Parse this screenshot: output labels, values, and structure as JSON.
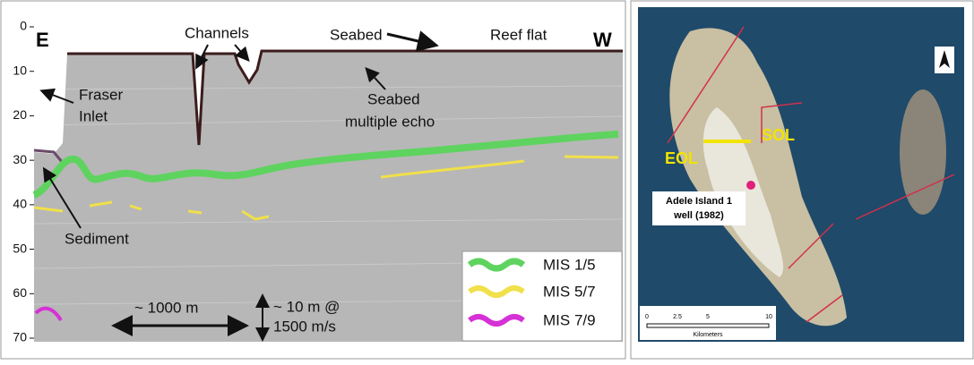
{
  "profile": {
    "depth_ticks": [
      0,
      10,
      20,
      30,
      40,
      50,
      60,
      70
    ],
    "east": "E",
    "west": "W",
    "channels": "Channels",
    "seabed": "Seabed",
    "reef_flat": "Reef flat",
    "fraser_inlet": [
      "Fraser",
      "Inlet"
    ],
    "multiple_echo": [
      "Seabed",
      "multiple echo"
    ],
    "sediment": "Sediment",
    "horizontal_scale": "~ 1000 m",
    "vertical_scale": [
      "~ 10 m @",
      "1500 m/s"
    ],
    "legend": [
      "MIS 1/5",
      "MIS 5/7",
      "MIS 7/9"
    ]
  },
  "map": {
    "sol": "SOL",
    "eol": "EOL",
    "well_label": [
      "Adele Island 1",
      "well (1982)"
    ],
    "scale_bar": {
      "ticks": [
        "0",
        "2.5",
        "5",
        "10"
      ],
      "unit": "Kilometers"
    }
  }
}
